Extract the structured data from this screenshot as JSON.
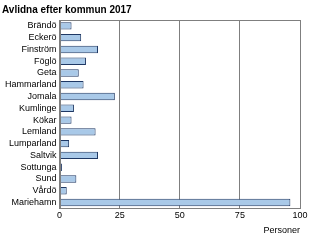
{
  "chart_data": {
    "type": "bar",
    "orientation": "horizontal",
    "title": "Avlidna efter kommun 2017",
    "xlabel": "Personer",
    "categories": [
      "Brändö",
      "Eckerö",
      "Finström",
      "Föglö",
      "Geta",
      "Hammarland",
      "Jomala",
      "Kumlinge",
      "Kökar",
      "Lemland",
      "Lumparland",
      "Saltvik",
      "Sottunga",
      "Sund",
      "Vårdö",
      "Mariehamn"
    ],
    "values": [
      5,
      9,
      16,
      11,
      8,
      10,
      23,
      6,
      5,
      15,
      4,
      16,
      1,
      7,
      3,
      96
    ],
    "color": "#a9c9e8",
    "xlim": [
      0,
      100
    ],
    "xticks": [
      0,
      25,
      50,
      75,
      100
    ],
    "grid": true
  }
}
